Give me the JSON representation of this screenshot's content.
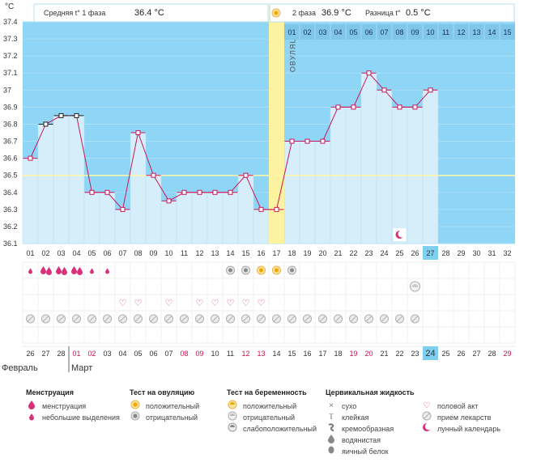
{
  "chart_data": {
    "type": "line",
    "unit_label": "°C",
    "title": "",
    "xlabel": "",
    "ylabel": "°C",
    "ylim": [
      36.1,
      37.4
    ],
    "y_ticks": [
      "37.4",
      "37.3",
      "37.2",
      "37.1",
      "37",
      "36.9",
      "36.8",
      "36.7",
      "36.6",
      "36.5",
      "36.4",
      "36.3",
      "36.2",
      "36.1"
    ],
    "coverline": 36.5,
    "ovulation_day": 17,
    "ovulation_label": "ОВУЛЯЦИЯ",
    "current_day": 27,
    "days": [
      "01",
      "02",
      "03",
      "04",
      "05",
      "06",
      "07",
      "08",
      "09",
      "10",
      "11",
      "12",
      "13",
      "14",
      "15",
      "16",
      "17",
      "18",
      "19",
      "20",
      "21",
      "22",
      "23",
      "24",
      "25",
      "26",
      "27",
      "28",
      "29",
      "30",
      "31",
      "32"
    ],
    "header_phase2_days": [
      "01",
      "02",
      "03",
      "04",
      "05",
      "06",
      "07",
      "08",
      "09",
      "10",
      "11",
      "12",
      "13",
      "14",
      "15"
    ],
    "series": [
      {
        "values": [
          36.6,
          36.8,
          36.85,
          36.85,
          36.4,
          36.4,
          36.3,
          36.75,
          36.5,
          36.35,
          36.4,
          36.4,
          36.4,
          36.4,
          36.5,
          36.3,
          36.3,
          36.7,
          36.7,
          36.7,
          36.9,
          36.9,
          37.1,
          37.0,
          36.9,
          36.9,
          37.0
        ]
      }
    ],
    "phase1": {
      "label": "Средняя t° 1 фаза",
      "value": "36.4 °C"
    },
    "phase2": {
      "label": "2 фаза",
      "value": "36.9 °C"
    },
    "difference": {
      "label": "Разница t°",
      "value": "0.5 °C"
    },
    "moon_day": 25,
    "black_marker_days": [
      2,
      3,
      4
    ]
  },
  "markers": {
    "menstruation": {
      "big_days": [
        2,
        3,
        4
      ],
      "small_days": [
        1,
        5,
        6
      ]
    },
    "ovulation_tests": {
      "negative_days": [
        14,
        15,
        18
      ],
      "positive_days": [
        16,
        17
      ]
    },
    "pregnancy_tests": {
      "negative_days": [
        26
      ]
    },
    "intercourse_days": [
      7,
      8,
      10,
      12,
      13,
      14,
      15,
      16
    ],
    "medication_days": [
      1,
      2,
      3,
      4,
      5,
      6,
      7,
      8,
      9,
      10,
      11,
      12,
      13,
      14,
      15,
      16,
      17,
      18,
      19,
      20,
      21,
      22,
      23,
      24,
      25,
      26
    ]
  },
  "calendar": {
    "dates": [
      "26",
      "27",
      "28",
      "01",
      "02",
      "03",
      "04",
      "05",
      "06",
      "07",
      "08",
      "09",
      "10",
      "11",
      "12",
      "13",
      "14",
      "15",
      "16",
      "17",
      "18",
      "19",
      "20",
      "21",
      "22",
      "23",
      "24",
      "25",
      "26",
      "27",
      "28",
      "29"
    ],
    "weekend_days": [
      4,
      5,
      11,
      12,
      15,
      16,
      22,
      23,
      32
    ],
    "highlight_day": 27,
    "months": [
      "Февраль",
      "Март"
    ]
  },
  "colors": {
    "bar": "#d6eefa",
    "bg": "#8fd5f5",
    "line": "#c8185a",
    "ovulation": "#fdf2a0",
    "coverline": "#fff6a8",
    "pink": "#d9307a",
    "weekend": "#cc1155",
    "highlight": "#7fd0f0"
  },
  "legend": {
    "menstruation": {
      "title": "Менструация",
      "items": [
        "менструация",
        "небольшие выделения"
      ]
    },
    "ovulation_test": {
      "title": "Тест на овуляцию",
      "items": [
        "положительный",
        "отрицательный"
      ]
    },
    "pregnancy_test": {
      "title": "Тест на беременность",
      "items": [
        "положительный",
        "отрицательный",
        "слабоположительный"
      ]
    },
    "cervical": {
      "title": "Цервикальная жидкость",
      "items": [
        "сухо",
        "клейкая",
        "кремообразная",
        "водянистая",
        "яичный белок"
      ]
    },
    "other": {
      "items": [
        "половой акт",
        "прием лекарств",
        "лунный календарь"
      ]
    }
  }
}
